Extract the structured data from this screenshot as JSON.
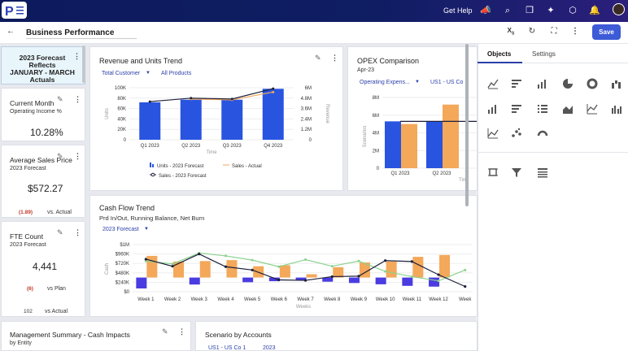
{
  "topbar": {
    "help": "Get Help"
  },
  "header": {
    "title": "Business Performance",
    "save": "Save"
  },
  "cards": {
    "forecast": {
      "line1": "2023 Forecast",
      "line2": "Reflects",
      "line3": "JANUARY - MARCH",
      "line4": "Actuals"
    },
    "current_month": {
      "title": "Current Month",
      "subtitle": "Operating Income %",
      "value": "10.28%"
    },
    "avg_sales": {
      "title": "Average Sales Price",
      "subtitle": "2023 Forecast",
      "value": "$572.27",
      "delta": "(1.89)",
      "compare": "vs. Actual"
    },
    "fte": {
      "title": "FTE Count",
      "subtitle": "2023 Forecast",
      "value": "4,441",
      "delta": "(6)",
      "compare": "vs Plan",
      "delta2": "102",
      "compare2": "vs Actual"
    },
    "mgmt": {
      "title": "Management Summary - Cash Impacts",
      "subtitle": "by Entity"
    },
    "scenario": {
      "title": "Scenario by Accounts",
      "f1": "US1 - US Co 1",
      "f2": "2023"
    }
  },
  "rev_chart": {
    "title": "Revenue and Units Trend",
    "filter1": "Total Customer",
    "filter2": "All Products",
    "left_ticks": [
      "100K",
      "80K",
      "60K",
      "40K",
      "20K",
      "0"
    ],
    "right_ticks": [
      "6M",
      "4.8M",
      "3.6M",
      "2.4M",
      "1.2M",
      "0"
    ],
    "ylabel": "Units",
    "y2label": "Revenue",
    "xlabel": "Time",
    "categories": [
      "Q1 2023",
      "Q2 2023",
      "Q3 2023",
      "Q4 2023"
    ],
    "legend": [
      "Units - 2023 Forecast",
      "Sales - Actual",
      "Sales - 2023 Forecast"
    ]
  },
  "opex_chart": {
    "title": "OPEX Comparison",
    "subtitle": "Apr-23",
    "filter1": "Operating Expens...",
    "filter2": "US1 - US Co 1",
    "ticks": [
      "8M",
      "6M",
      "4M",
      "2M",
      "0"
    ],
    "ylabel": "Scenarios",
    "categories": [
      "Q1 2023",
      "Q2 2023"
    ],
    "xlabel": "Tim"
  },
  "cash_chart": {
    "title": "Cash Flow Trend",
    "subtitle": "Prd In/Out, Running Balance, Net Burn",
    "filter": "2023 Forecast",
    "ticks": [
      "$1M",
      "$960K",
      "$720K",
      "$480K",
      "$240K",
      "$0"
    ],
    "ylabel": "Cash",
    "xlabel": "Weeks",
    "categories": [
      "Week 1",
      "Week 2",
      "Week 3",
      "Week 4",
      "Week 5",
      "Week 6",
      "Week 7",
      "Week 8",
      "Week 9",
      "Week 10",
      "Week 11",
      "Week 12",
      "Week"
    ]
  },
  "panel": {
    "tab1": "Objects",
    "tab2": "Settings"
  },
  "chart_data": [
    {
      "type": "bar",
      "title": "Revenue and Units Trend",
      "categories": [
        "Q1 2023",
        "Q2 2023",
        "Q3 2023",
        "Q4 2023"
      ],
      "ylim": [
        0,
        100000
      ],
      "y2lim": [
        0,
        6000000
      ],
      "series": [
        {
          "name": "Units - 2023 Forecast",
          "values": [
            72000,
            77000,
            77000,
            98000
          ]
        },
        {
          "name": "Sales - Actual",
          "values": [
            null,
            4700000,
            4600000,
            5500000
          ]
        },
        {
          "name": "Sales - 2023 Forecast",
          "values": [
            4400000,
            4800000,
            4700000,
            5900000
          ]
        }
      ]
    },
    {
      "type": "bar",
      "title": "OPEX Comparison",
      "categories": [
        "Q1 2023",
        "Q2 2023"
      ],
      "ylim": [
        0,
        8000000
      ],
      "series": [
        {
          "values": [
            5300000,
            5300000
          ]
        },
        {
          "values": [
            5000000,
            7200000
          ]
        }
      ]
    },
    {
      "type": "bar",
      "title": "Cash Flow Trend",
      "categories": [
        "Week 1",
        "Week 2",
        "Week 3",
        "Week 4",
        "Week 5",
        "Week 6",
        "Week 7",
        "Week 8",
        "Week 9",
        "Week 10",
        "Week 11",
        "Week 12",
        "Week"
      ],
      "ylim": [
        0,
        1000000
      ],
      "series": [
        {
          "values": [
            760000,
            640000,
            650000,
            670000,
            540000,
            560000,
            370000,
            520000,
            620000,
            640000,
            740000,
            780000,
            null
          ]
        },
        {
          "values": [
            420000,
            0,
            270000,
            0,
            180000,
            140000,
            110000,
            160000,
            210000,
            260000,
            320000,
            350000,
            null
          ]
        },
        {
          "values": [
            650000,
            590000,
            820000,
            760000,
            670000,
            530000,
            680000,
            540000,
            650000,
            430000,
            320000,
            230000,
            460000
          ]
        },
        {
          "values": [
            690000,
            540000,
            800000,
            530000,
            460000,
            250000,
            240000,
            320000,
            330000,
            660000,
            640000,
            360000,
            110000
          ]
        }
      ]
    }
  ]
}
